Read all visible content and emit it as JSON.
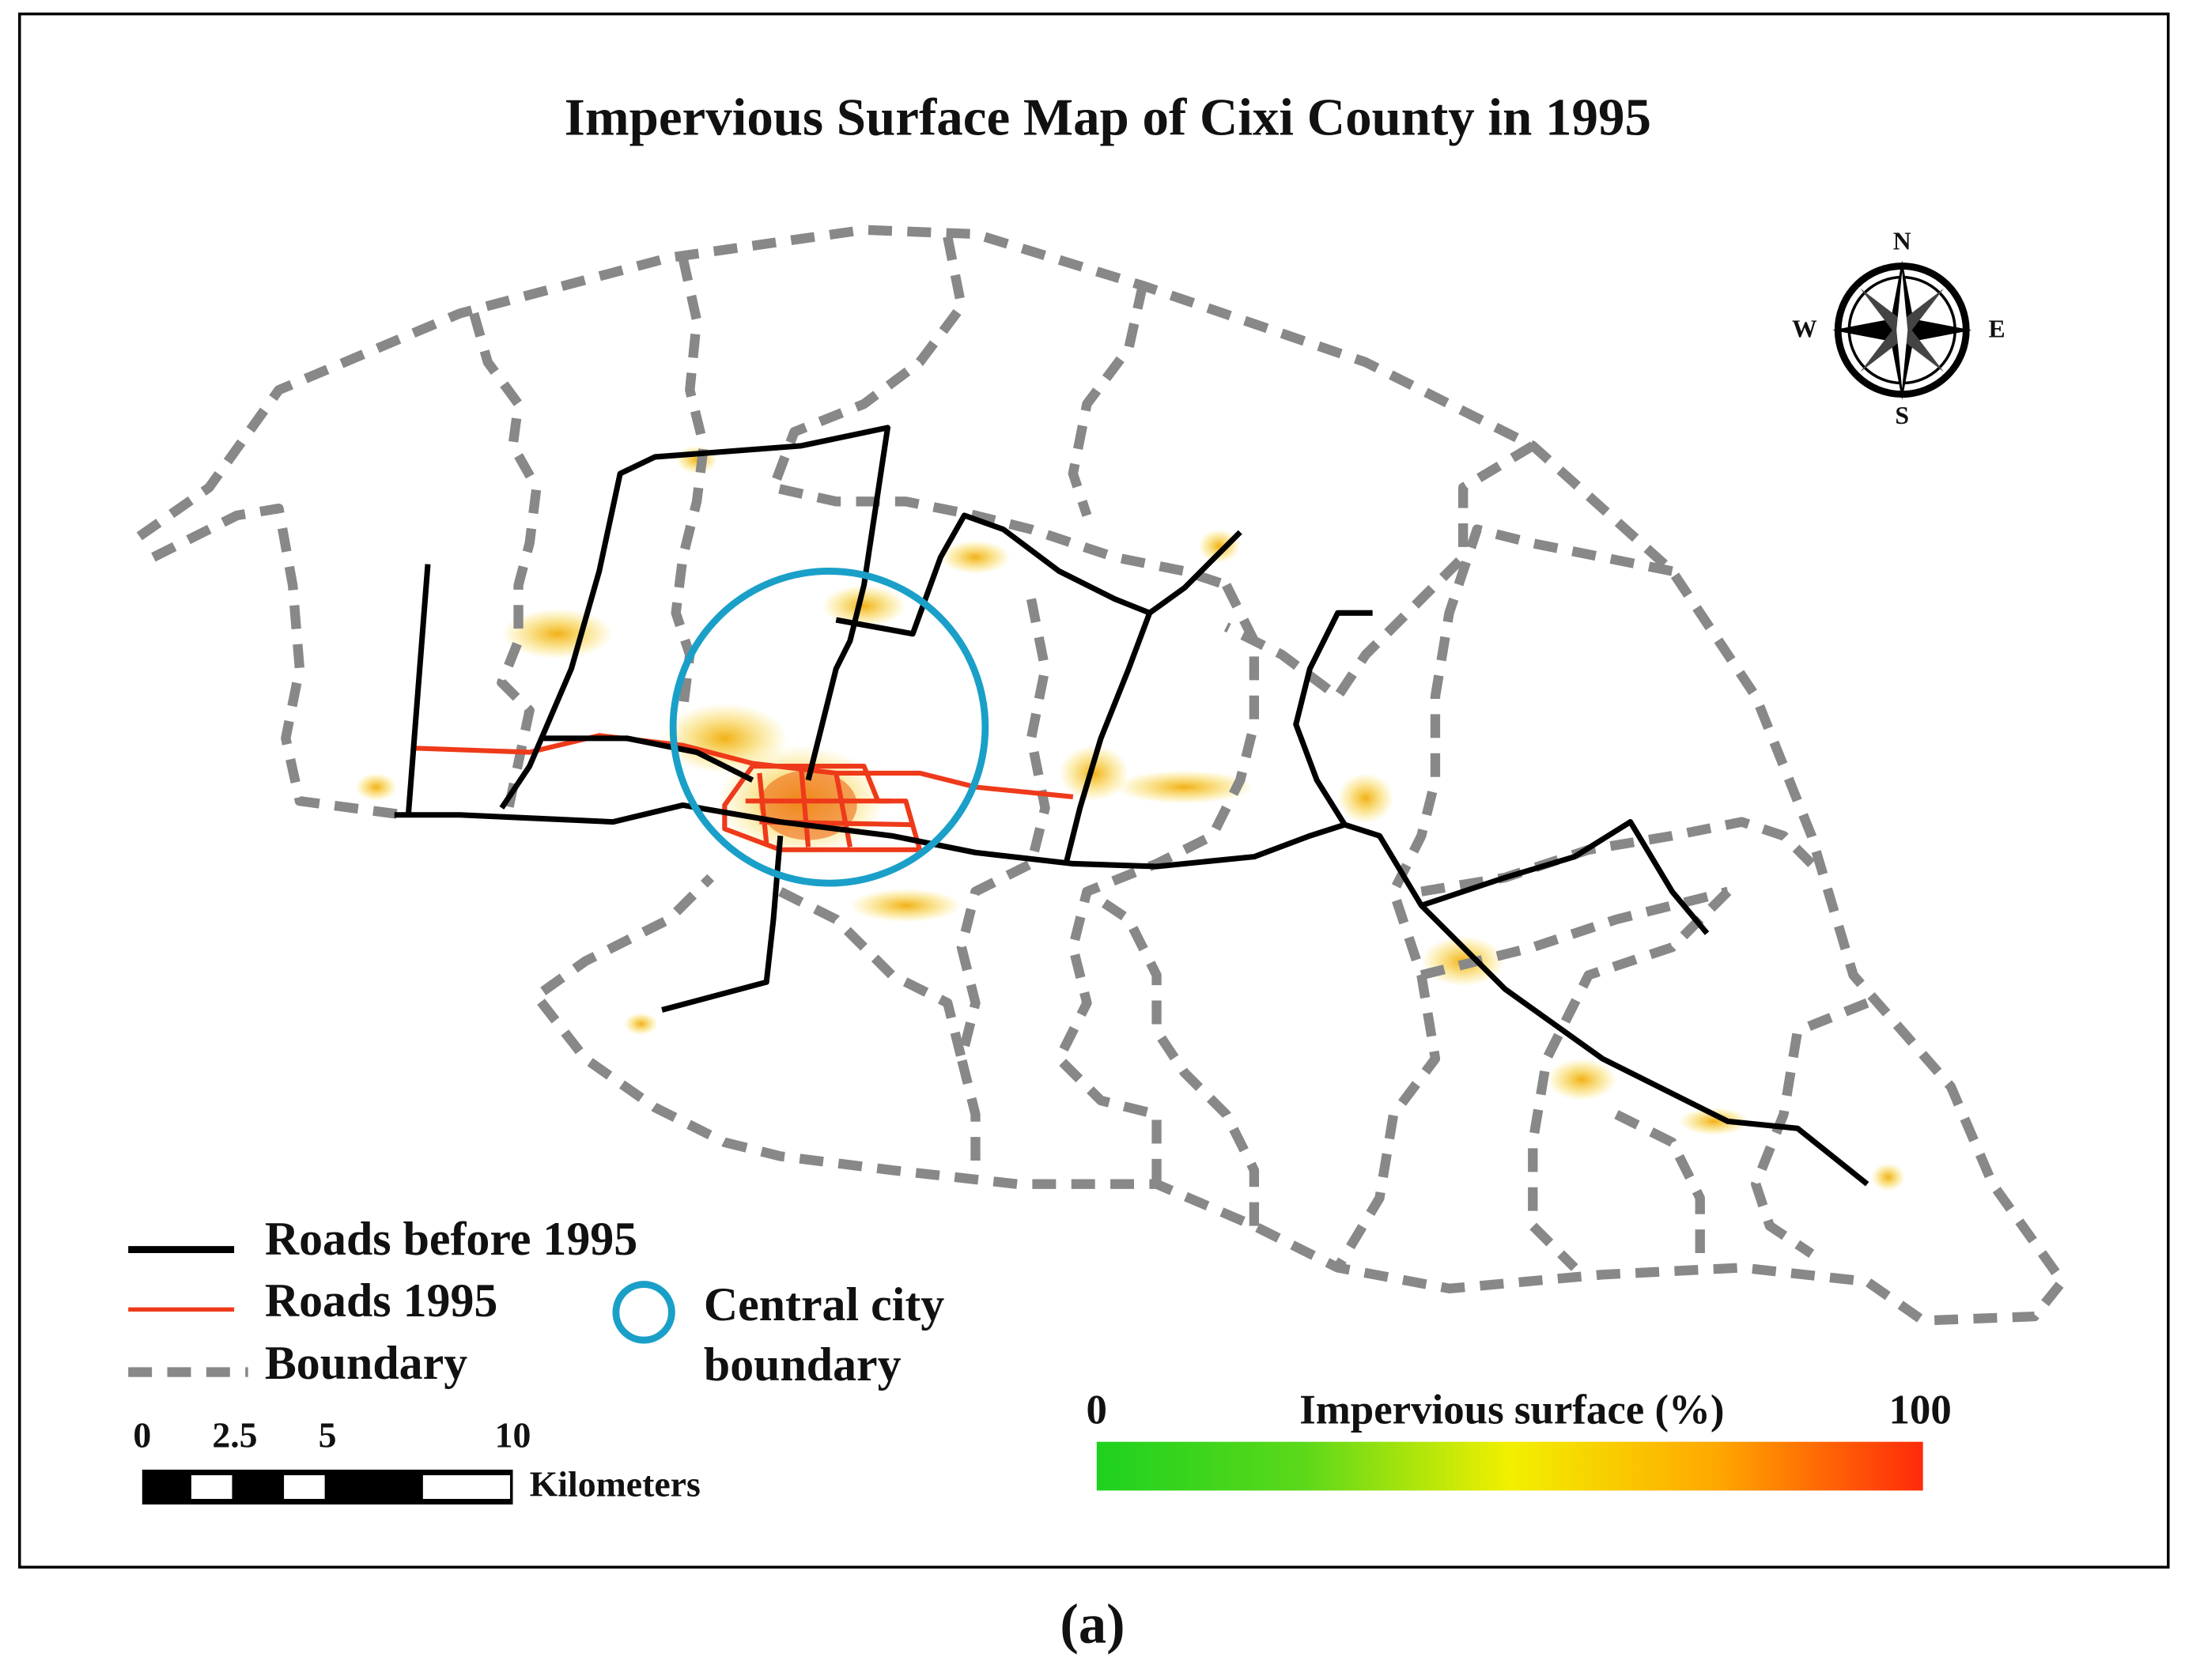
{
  "title": "Impervious Surface Map of Cixi County in 1995",
  "compass": {
    "n": "N",
    "s": "S",
    "e": "E",
    "w": "W"
  },
  "legend": {
    "roads_before": "Roads before 1995",
    "roads_1995": "Roads 1995",
    "boundary": "Boundary",
    "central_city": [
      "Central city",
      "boundary"
    ]
  },
  "scale_bar": {
    "ticks": [
      0,
      2.5,
      5,
      10
    ],
    "unit": "Kilometers"
  },
  "colorbar": {
    "title": "Impervious surface (%)",
    "min": 0,
    "max": 100
  },
  "caption": "(a)"
}
